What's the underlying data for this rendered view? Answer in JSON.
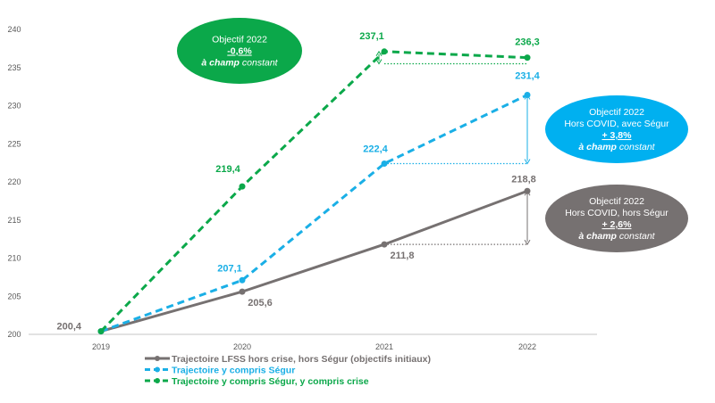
{
  "chart_data": {
    "type": "line",
    "title": "",
    "xlabel": "",
    "ylabel": "",
    "ylim": [
      200,
      240
    ],
    "yticks": [
      "200",
      "205",
      "210",
      "215",
      "220",
      "225",
      "230",
      "235",
      "240"
    ],
    "categories": [
      "2019",
      "2020",
      "2021",
      "2022"
    ],
    "grid": false,
    "legend_position": "bottom",
    "series": [
      {
        "name": "Trajectoire LFSS hors crise, hors Ségur (objectifs initiaux)",
        "color": "#767171",
        "dash": "solid",
        "values": [
          200.4,
          205.6,
          211.8,
          218.8
        ],
        "labels": [
          "200,4",
          "205,6",
          "211,8",
          "218,8"
        ]
      },
      {
        "name": "Trajectoire y compris Ségur",
        "color": "#1AAFE6",
        "dash": "dashed",
        "values": [
          200.4,
          207.1,
          222.4,
          231.4
        ],
        "labels": [
          "",
          "207,1",
          "222,4",
          "231,4"
        ]
      },
      {
        "name": "Trajectoire y compris Ségur, y compris crise",
        "color": "#0BA84A",
        "dash": "dashed",
        "values": [
          200.4,
          219.4,
          237.1,
          236.3
        ],
        "labels": [
          "",
          "219,4",
          "237,1",
          "236,3"
        ]
      }
    ],
    "annotations": [
      {
        "color": "#0BA84A",
        "lines": [
          "Objectif 2022",
          "-0,6%",
          "à champ",
          "constant"
        ]
      },
      {
        "color": "#00B0F0",
        "lines": [
          "Objectif 2022",
          "Hors COVID, avec Ségur",
          "+ 3,8%",
          "à champ",
          "constant"
        ]
      },
      {
        "color": "#767171",
        "lines": [
          "Objectif 2022",
          "Hors COVID, hors Ségur",
          "+ 2,6%",
          "à champ",
          "constant"
        ]
      }
    ]
  }
}
